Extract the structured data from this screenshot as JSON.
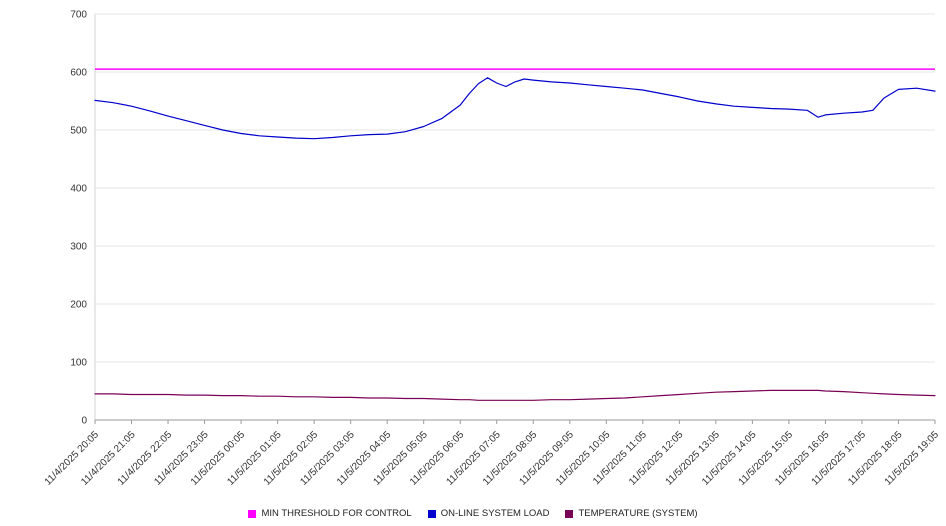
{
  "chart_data": {
    "type": "line",
    "title": "",
    "grid": true,
    "legend_position": "bottom",
    "ylim": [
      0,
      700
    ],
    "yticks": [
      0,
      100,
      200,
      300,
      400,
      500,
      600,
      700
    ],
    "x_range": [
      0,
      23
    ],
    "x_tick_labels": [
      "11/4/2025 20:05",
      "11/4/2025 21:05",
      "11/4/2025 22:05",
      "11/4/2025 23:05",
      "11/5/2025 00:05",
      "11/5/2025 01:05",
      "11/5/2025 02:05",
      "11/5/2025 03:05",
      "11/5/2025 04:05",
      "11/5/2025 05:05",
      "11/5/2025 06:05",
      "11/5/2025 07:05",
      "11/5/2025 08:05",
      "11/5/2025 09:05",
      "11/5/2025 10:05",
      "11/5/2025 11:05",
      "11/5/2025 12:05",
      "11/5/2025 13:05",
      "11/5/2025 14:05",
      "11/5/2025 15:05",
      "11/5/2025 16:05",
      "11/5/2025 17:05",
      "11/5/2025 18:05",
      "11/5/2025 19:05"
    ],
    "x": [
      0,
      0.5,
      1,
      1.5,
      2,
      2.5,
      3,
      3.5,
      4,
      4.5,
      5,
      5.5,
      6,
      6.5,
      7,
      7.5,
      8,
      8.5,
      9,
      9.5,
      10,
      10.25,
      10.5,
      10.75,
      11,
      11.25,
      11.5,
      11.75,
      12,
      12.5,
      13,
      13.5,
      14,
      14.5,
      15,
      15.5,
      16,
      16.5,
      17,
      17.5,
      18,
      18.5,
      19,
      19.5,
      19.8,
      20,
      20.5,
      21,
      21.3,
      21.6,
      22,
      22.5,
      23
    ],
    "series": [
      {
        "name": "MIN THRESHOLD FOR CONTROL",
        "color": "#FF00FF",
        "constant": 605
      },
      {
        "name": "ON-LINE SYSTEM LOAD",
        "color": "#0000CD",
        "values": [
          551,
          547,
          541,
          533,
          524,
          516,
          508,
          500,
          494,
          490,
          488,
          486,
          485,
          487,
          490,
          492,
          493,
          497,
          506,
          520,
          543,
          563,
          580,
          590,
          581,
          575,
          583,
          588,
          586,
          583,
          581,
          578,
          575,
          572,
          569,
          563,
          557,
          550,
          545,
          541,
          539,
          537,
          536,
          534,
          522,
          526,
          529,
          531,
          534,
          555,
          570,
          572,
          567
        ]
      },
      {
        "name": "TEMPERATURE (SYSTEM)",
        "color": "#7A0055",
        "values": [
          45,
          45,
          44,
          44,
          44,
          43,
          43,
          42,
          42,
          41,
          41,
          40,
          40,
          39,
          39,
          38,
          38,
          37,
          37,
          36,
          35,
          35,
          34,
          34,
          34,
          34,
          34,
          34,
          34,
          35,
          35,
          36,
          37,
          38,
          40,
          42,
          44,
          46,
          48,
          49,
          50,
          51,
          51,
          51,
          51,
          50,
          49,
          47,
          46,
          45,
          44,
          43,
          42
        ]
      }
    ]
  }
}
